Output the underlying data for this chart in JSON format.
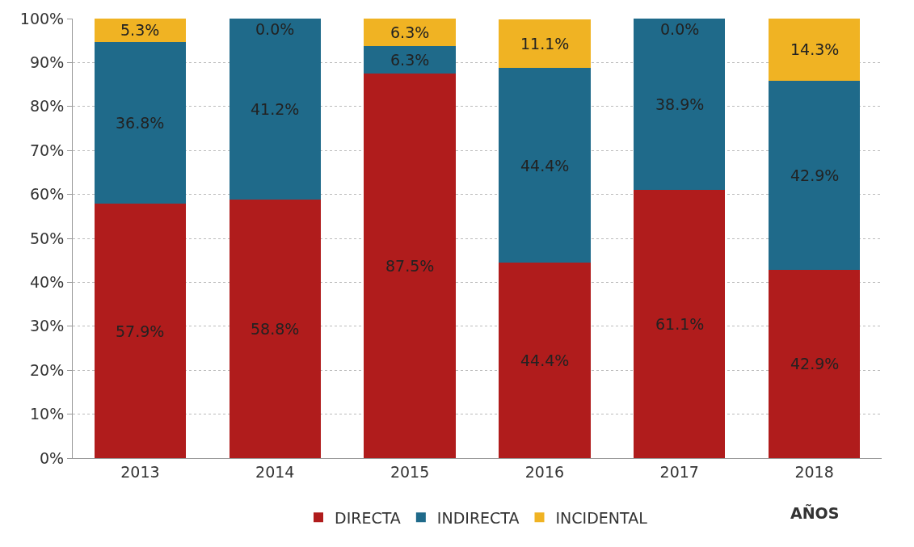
{
  "chart_data": {
    "type": "bar",
    "stacked": true,
    "xlabel": "AÑOS",
    "categories": [
      "2013",
      "2014",
      "2015",
      "2016",
      "2017",
      "2018"
    ],
    "series": [
      {
        "name": "DIRECTA",
        "color": "#b01c1c",
        "values": [
          57.9,
          58.8,
          87.5,
          44.4,
          61.1,
          42.9
        ],
        "value_labels": [
          "57.9%",
          "58.8%",
          "87.5%",
          "44.4%",
          "61.1%",
          "42.9%"
        ]
      },
      {
        "name": "INDIRECTA",
        "color": "#1f6a8a",
        "values": [
          36.8,
          41.2,
          6.3,
          44.4,
          38.9,
          42.9
        ],
        "value_labels": [
          "36.8%",
          "41.2%",
          "6.3%",
          "44.4%",
          "38.9%",
          "42.9%"
        ]
      },
      {
        "name": "INCIDENTAL",
        "color": "#f0b323",
        "values": [
          5.3,
          0.0,
          6.3,
          11.1,
          0.0,
          14.3
        ],
        "value_labels": [
          "5.3%",
          "0.0%",
          "6.3%",
          "11.1%",
          "0.0%",
          "14.3%"
        ]
      }
    ],
    "ylim": [
      0,
      100
    ],
    "yticks": [
      {
        "value": 0,
        "label": "0%"
      },
      {
        "value": 10,
        "label": "10%"
      },
      {
        "value": 20,
        "label": "20%"
      },
      {
        "value": 30,
        "label": "30%"
      },
      {
        "value": 40,
        "label": "40%"
      },
      {
        "value": 50,
        "label": "50%"
      },
      {
        "value": 60,
        "label": "60%"
      },
      {
        "value": 70,
        "label": "70%"
      },
      {
        "value": 80,
        "label": "80%"
      },
      {
        "value": 90,
        "label": "90%"
      },
      {
        "value": 100,
        "label": "100%"
      }
    ],
    "grid": "y",
    "legend": "bottom"
  }
}
